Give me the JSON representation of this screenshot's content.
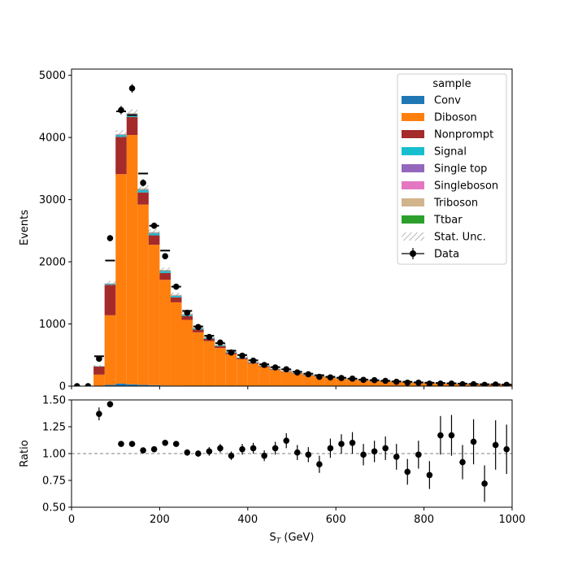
{
  "chart_data": [
    {
      "type": "bar",
      "stacked": true,
      "panel": "main",
      "xlabel": "",
      "ylabel": "Events",
      "xlim": [
        0,
        1000
      ],
      "ylim": [
        0,
        5100
      ],
      "xticks": [
        0,
        200,
        400,
        600,
        800,
        1000
      ],
      "yticks": [
        0,
        1000,
        2000,
        3000,
        4000,
        5000
      ],
      "xtick_labels": [
        "",
        "",
        "",
        "",
        "",
        ""
      ],
      "ytick_labels": [
        "0",
        "1000",
        "2000",
        "3000",
        "4000",
        "5000"
      ],
      "bin_edges": [
        0,
        25,
        50,
        75,
        100,
        125,
        150,
        175,
        200,
        225,
        250,
        275,
        300,
        325,
        350,
        375,
        400,
        425,
        450,
        475,
        500,
        525,
        550,
        575,
        600,
        625,
        650,
        675,
        700,
        725,
        750,
        775,
        800,
        825,
        850,
        875,
        900,
        925,
        950,
        975,
        1000
      ],
      "legend": {
        "title": "sample",
        "position": "top-right"
      },
      "series": [
        {
          "name": "Conv",
          "color": "#1f77b4",
          "values": [
            0,
            0,
            5,
            20,
            40,
            30,
            20,
            15,
            10,
            8,
            6,
            5,
            4,
            3,
            3,
            2,
            2,
            2,
            1,
            1,
            1,
            1,
            1,
            1,
            0,
            0,
            0,
            0,
            0,
            0,
            0,
            0,
            0,
            0,
            0,
            0,
            0,
            0,
            0,
            0
          ]
        },
        {
          "name": "Diboson",
          "color": "#ff7f0e",
          "values": [
            0,
            0,
            180,
            1120,
            3370,
            4010,
            2900,
            2260,
            1700,
            1340,
            1060,
            860,
            720,
            610,
            510,
            430,
            360,
            305,
            260,
            225,
            195,
            170,
            150,
            130,
            115,
            100,
            90,
            80,
            72,
            65,
            58,
            52,
            47,
            42,
            38,
            35,
            32,
            29,
            27,
            25
          ]
        },
        {
          "name": "Nonprompt",
          "color": "#a52a2a",
          "values": [
            0,
            0,
            130,
            490,
            600,
            290,
            195,
            150,
            110,
            80,
            60,
            45,
            35,
            28,
            22,
            18,
            14,
            12,
            10,
            8,
            7,
            6,
            5,
            5,
            4,
            4,
            3,
            3,
            3,
            2,
            2,
            2,
            2,
            2,
            1,
            1,
            1,
            1,
            1,
            1
          ]
        },
        {
          "name": "Signal",
          "color": "#17becf",
          "values": [
            0,
            0,
            5,
            15,
            30,
            40,
            40,
            35,
            30,
            25,
            20,
            17,
            14,
            12,
            10,
            8,
            7,
            6,
            5,
            4,
            4,
            3,
            3,
            3,
            2,
            2,
            2,
            2,
            1,
            1,
            1,
            1,
            1,
            1,
            1,
            1,
            1,
            1,
            1,
            1
          ]
        },
        {
          "name": "Single top",
          "color": "#9467bd",
          "values": [
            0,
            0,
            0,
            2,
            4,
            5,
            5,
            4,
            4,
            3,
            3,
            2,
            2,
            2,
            1,
            1,
            1,
            1,
            1,
            1,
            0,
            0,
            0,
            0,
            0,
            0,
            0,
            0,
            0,
            0,
            0,
            0,
            0,
            0,
            0,
            0,
            0,
            0,
            0,
            0
          ]
        },
        {
          "name": "Singleboson",
          "color": "#e377c2",
          "values": [
            0,
            0,
            1,
            3,
            5,
            6,
            5,
            5,
            4,
            3,
            3,
            2,
            2,
            2,
            1,
            1,
            1,
            1,
            1,
            1,
            0,
            0,
            0,
            0,
            0,
            0,
            0,
            0,
            0,
            0,
            0,
            0,
            0,
            0,
            0,
            0,
            0,
            0,
            0,
            0
          ]
        },
        {
          "name": "Triboson",
          "color": "#d2b48c",
          "values": [
            0,
            0,
            0,
            1,
            3,
            5,
            6,
            6,
            6,
            5,
            5,
            4,
            4,
            3,
            3,
            3,
            2,
            2,
            2,
            2,
            2,
            1,
            1,
            1,
            1,
            1,
            1,
            1,
            1,
            1,
            1,
            1,
            1,
            1,
            1,
            1,
            1,
            1,
            1,
            1
          ]
        },
        {
          "name": "Ttbar",
          "color": "#2ca02c",
          "values": [
            0,
            0,
            0,
            1,
            2,
            3,
            4,
            4,
            4,
            3,
            3,
            3,
            2,
            2,
            2,
            2,
            1,
            1,
            1,
            1,
            1,
            1,
            1,
            1,
            1,
            0,
            0,
            0,
            0,
            0,
            0,
            0,
            0,
            0,
            0,
            0,
            0,
            0,
            0,
            0
          ]
        }
      ],
      "stat_unc_label": "Stat. Unc.",
      "data": {
        "name": "Data",
        "x": [
          12.5,
          37.5,
          62.5,
          87.5,
          112.5,
          137.5,
          162.5,
          187.5,
          212.5,
          237.5,
          262.5,
          287.5,
          312.5,
          337.5,
          362.5,
          387.5,
          412.5,
          437.5,
          462.5,
          487.5,
          512.5,
          537.5,
          562.5,
          587.5,
          612.5,
          637.5,
          662.5,
          687.5,
          712.5,
          737.5,
          762.5,
          787.5,
          812.5,
          837.5,
          862.5,
          887.5,
          912.5,
          937.5,
          962.5,
          987.5
        ],
        "y": [
          0,
          0,
          440,
          2380,
          4440,
          4790,
          3270,
          2580,
          2090,
          1600,
          1180,
          950,
          790,
          700,
          540,
          490,
          410,
          340,
          300,
          270,
          220,
          190,
          150,
          140,
          130,
          120,
          100,
          95,
          85,
          70,
          55,
          55,
          40,
          40,
          40,
          30,
          30,
          20,
          25,
          20
        ]
      },
      "expected_markers": [
        0,
        0,
        480,
        2020,
        4420,
        4360,
        3420,
        2580,
        2180,
        1600,
        1210,
        960,
        810,
        690,
        570,
        500,
        415,
        350,
        305,
        270,
        230,
        200,
        175,
        150,
        135,
        120,
        105,
        95,
        85,
        75,
        70,
        60,
        55,
        50,
        45,
        40,
        35,
        30,
        30,
        25
      ]
    },
    {
      "type": "scatter",
      "panel": "ratio",
      "xlabel": "S$_T$ (GeV)",
      "ylabel": "Ratio",
      "xlim": [
        0,
        1000
      ],
      "ylim": [
        0.5,
        1.5
      ],
      "xticks": [
        0,
        200,
        400,
        600,
        800,
        1000
      ],
      "yticks": [
        0.5,
        0.75,
        1.0,
        1.25,
        1.5
      ],
      "xtick_labels": [
        "0",
        "200",
        "400",
        "600",
        "800",
        "1000"
      ],
      "ytick_labels": [
        "0.50",
        "0.75",
        "1.00",
        "1.25",
        "1.50"
      ],
      "reference_line": 1.0,
      "x": [
        62.5,
        87.5,
        112.5,
        137.5,
        162.5,
        187.5,
        212.5,
        237.5,
        262.5,
        287.5,
        312.5,
        337.5,
        362.5,
        387.5,
        412.5,
        437.5,
        462.5,
        487.5,
        512.5,
        537.5,
        562.5,
        587.5,
        612.5,
        637.5,
        662.5,
        687.5,
        712.5,
        737.5,
        762.5,
        787.5,
        812.5,
        837.5,
        862.5,
        887.5,
        912.5,
        937.5,
        962.5,
        987.5
      ],
      "y": [
        1.37,
        1.46,
        1.09,
        1.09,
        1.03,
        1.04,
        1.1,
        1.09,
        1.01,
        1.0,
        1.02,
        1.05,
        0.98,
        1.04,
        1.05,
        0.98,
        1.05,
        1.12,
        1.01,
        0.99,
        0.9,
        1.05,
        1.09,
        1.1,
        0.99,
        1.02,
        1.05,
        0.97,
        0.83,
        0.99,
        0.8,
        1.17,
        1.17,
        0.92,
        1.11,
        0.72,
        1.08,
        1.04
      ],
      "yerr": [
        0.06,
        0.03,
        0.02,
        0.02,
        0.02,
        0.02,
        0.02,
        0.02,
        0.03,
        0.03,
        0.04,
        0.04,
        0.04,
        0.05,
        0.05,
        0.05,
        0.06,
        0.07,
        0.07,
        0.07,
        0.08,
        0.09,
        0.09,
        0.1,
        0.1,
        0.1,
        0.11,
        0.12,
        0.12,
        0.13,
        0.13,
        0.18,
        0.19,
        0.16,
        0.21,
        0.17,
        0.23,
        0.23
      ]
    }
  ]
}
